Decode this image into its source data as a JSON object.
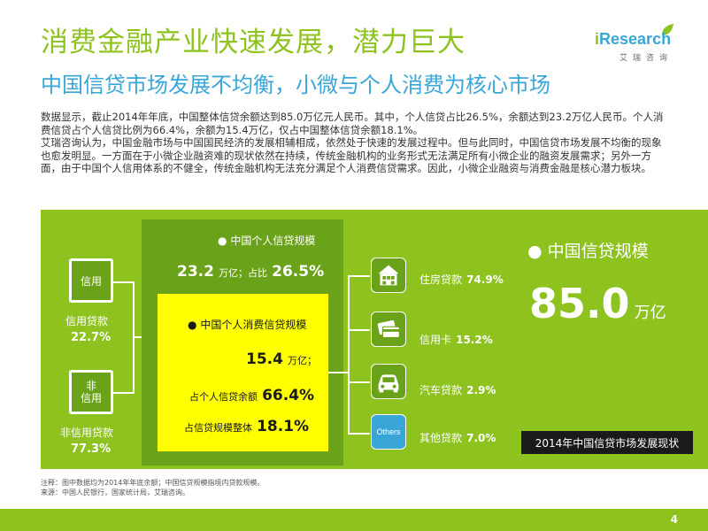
{
  "header": {
    "title": "消费金融产业快速发展，潜力巨大",
    "subtitle": "中国信贷市场发展不均衡，小微与个人消费为核心市场",
    "logo_brand_i": "i",
    "logo_brand_rest": "Research",
    "logo_cn": "艾瑞咨询"
  },
  "intro": [
    "数据显示，截止2014年年底，中国整体信贷余额达到85.0万亿元人民币。其中，个人信贷占比26.5%，余额达到23.2万亿人民币。个人消费信贷占个人信贷比例为66.4%，余额为15.4万亿，仅占中国整体信贷余额18.1%。",
    "艾瑞咨询认为，中国金融市场与中国国民经济的发展相辅相成，依然处于快速的发展过程中。但与此同时，中国信贷市场发展不均衡的现象也愈发明显。一方面在于小微企业融资难的现状依然在持续，传统金融机构的业务形式无法满足所有小微企业的融资发展需求；另外一方面，由于中国个人信用体系的不健全，传统金融机构无法充分满足个人消费信贷需求。因此，小微企业融资与消费金融是核心潜力板块。"
  ],
  "diagram": {
    "left": {
      "credit_box": "信用",
      "credit_label": "信用贷款",
      "credit_value": "22.7%",
      "noncredit_box_line1": "非",
      "noncredit_box_line2": "信用",
      "noncredit_label": "非信用贷款",
      "noncredit_value": "77.3%"
    },
    "personal": {
      "label": "中国个人信贷规模",
      "value": "23.2",
      "unit": "万亿；占比",
      "pct": "26.5%"
    },
    "consumer": {
      "label": "中国个人消费信贷规模",
      "value": "15.4",
      "unit": "万亿；",
      "share_label": "占个人信贷余额",
      "share_value": "66.4%",
      "total_label": "占信贷规模整体",
      "total_value": "18.1%"
    },
    "categories": [
      {
        "name": "住房贷款",
        "value": "74.9%",
        "icon": "house-icon"
      },
      {
        "name": "信用卡",
        "value": "15.2%",
        "icon": "credit-card-icon"
      },
      {
        "name": "汽车贷款",
        "value": "2.9%",
        "icon": "car-icon"
      },
      {
        "name": "其他贷款",
        "value": "7.0%",
        "icon": "others-icon",
        "icon_text": "Others"
      }
    ],
    "total": {
      "label": "中国信贷规模",
      "value": "85.0",
      "unit": "万亿"
    },
    "caption": "2014年中国信贷市场发展现状"
  },
  "notes": {
    "note": "注释：图中数据均为2014年年底余额；中国信贷规模指境内贷款规模。",
    "source": "来源：中国人民银行，国家统计局，艾瑞咨询。"
  },
  "page_number": "4",
  "colors": {
    "green": "#8dc21f",
    "dark_green": "#6aa21a",
    "blue": "#3aa6d8",
    "yellow": "#ffff00"
  }
}
